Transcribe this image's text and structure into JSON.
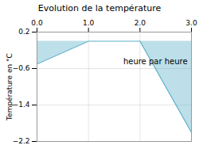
{
  "chart_data": {
    "type": "area",
    "title": "Evolution de la température",
    "y_label": "Température en °C",
    "x": [
      0,
      1,
      2,
      3
    ],
    "values": [
      -0.5,
      0.0,
      0.0,
      -2.0
    ],
    "color": "#5aafc8",
    "xlim": [
      0,
      3
    ],
    "ylim": [
      -2.2,
      0.2
    ],
    "xticks": [
      0,
      1,
      2,
      3
    ],
    "yticks": [
      0.2,
      -0.6,
      -1.4,
      -2.2
    ],
    "grid": true,
    "annotations": [
      {
        "text": "heure par heure",
        "x": 2.3,
        "y": -0.38
      }
    ]
  }
}
